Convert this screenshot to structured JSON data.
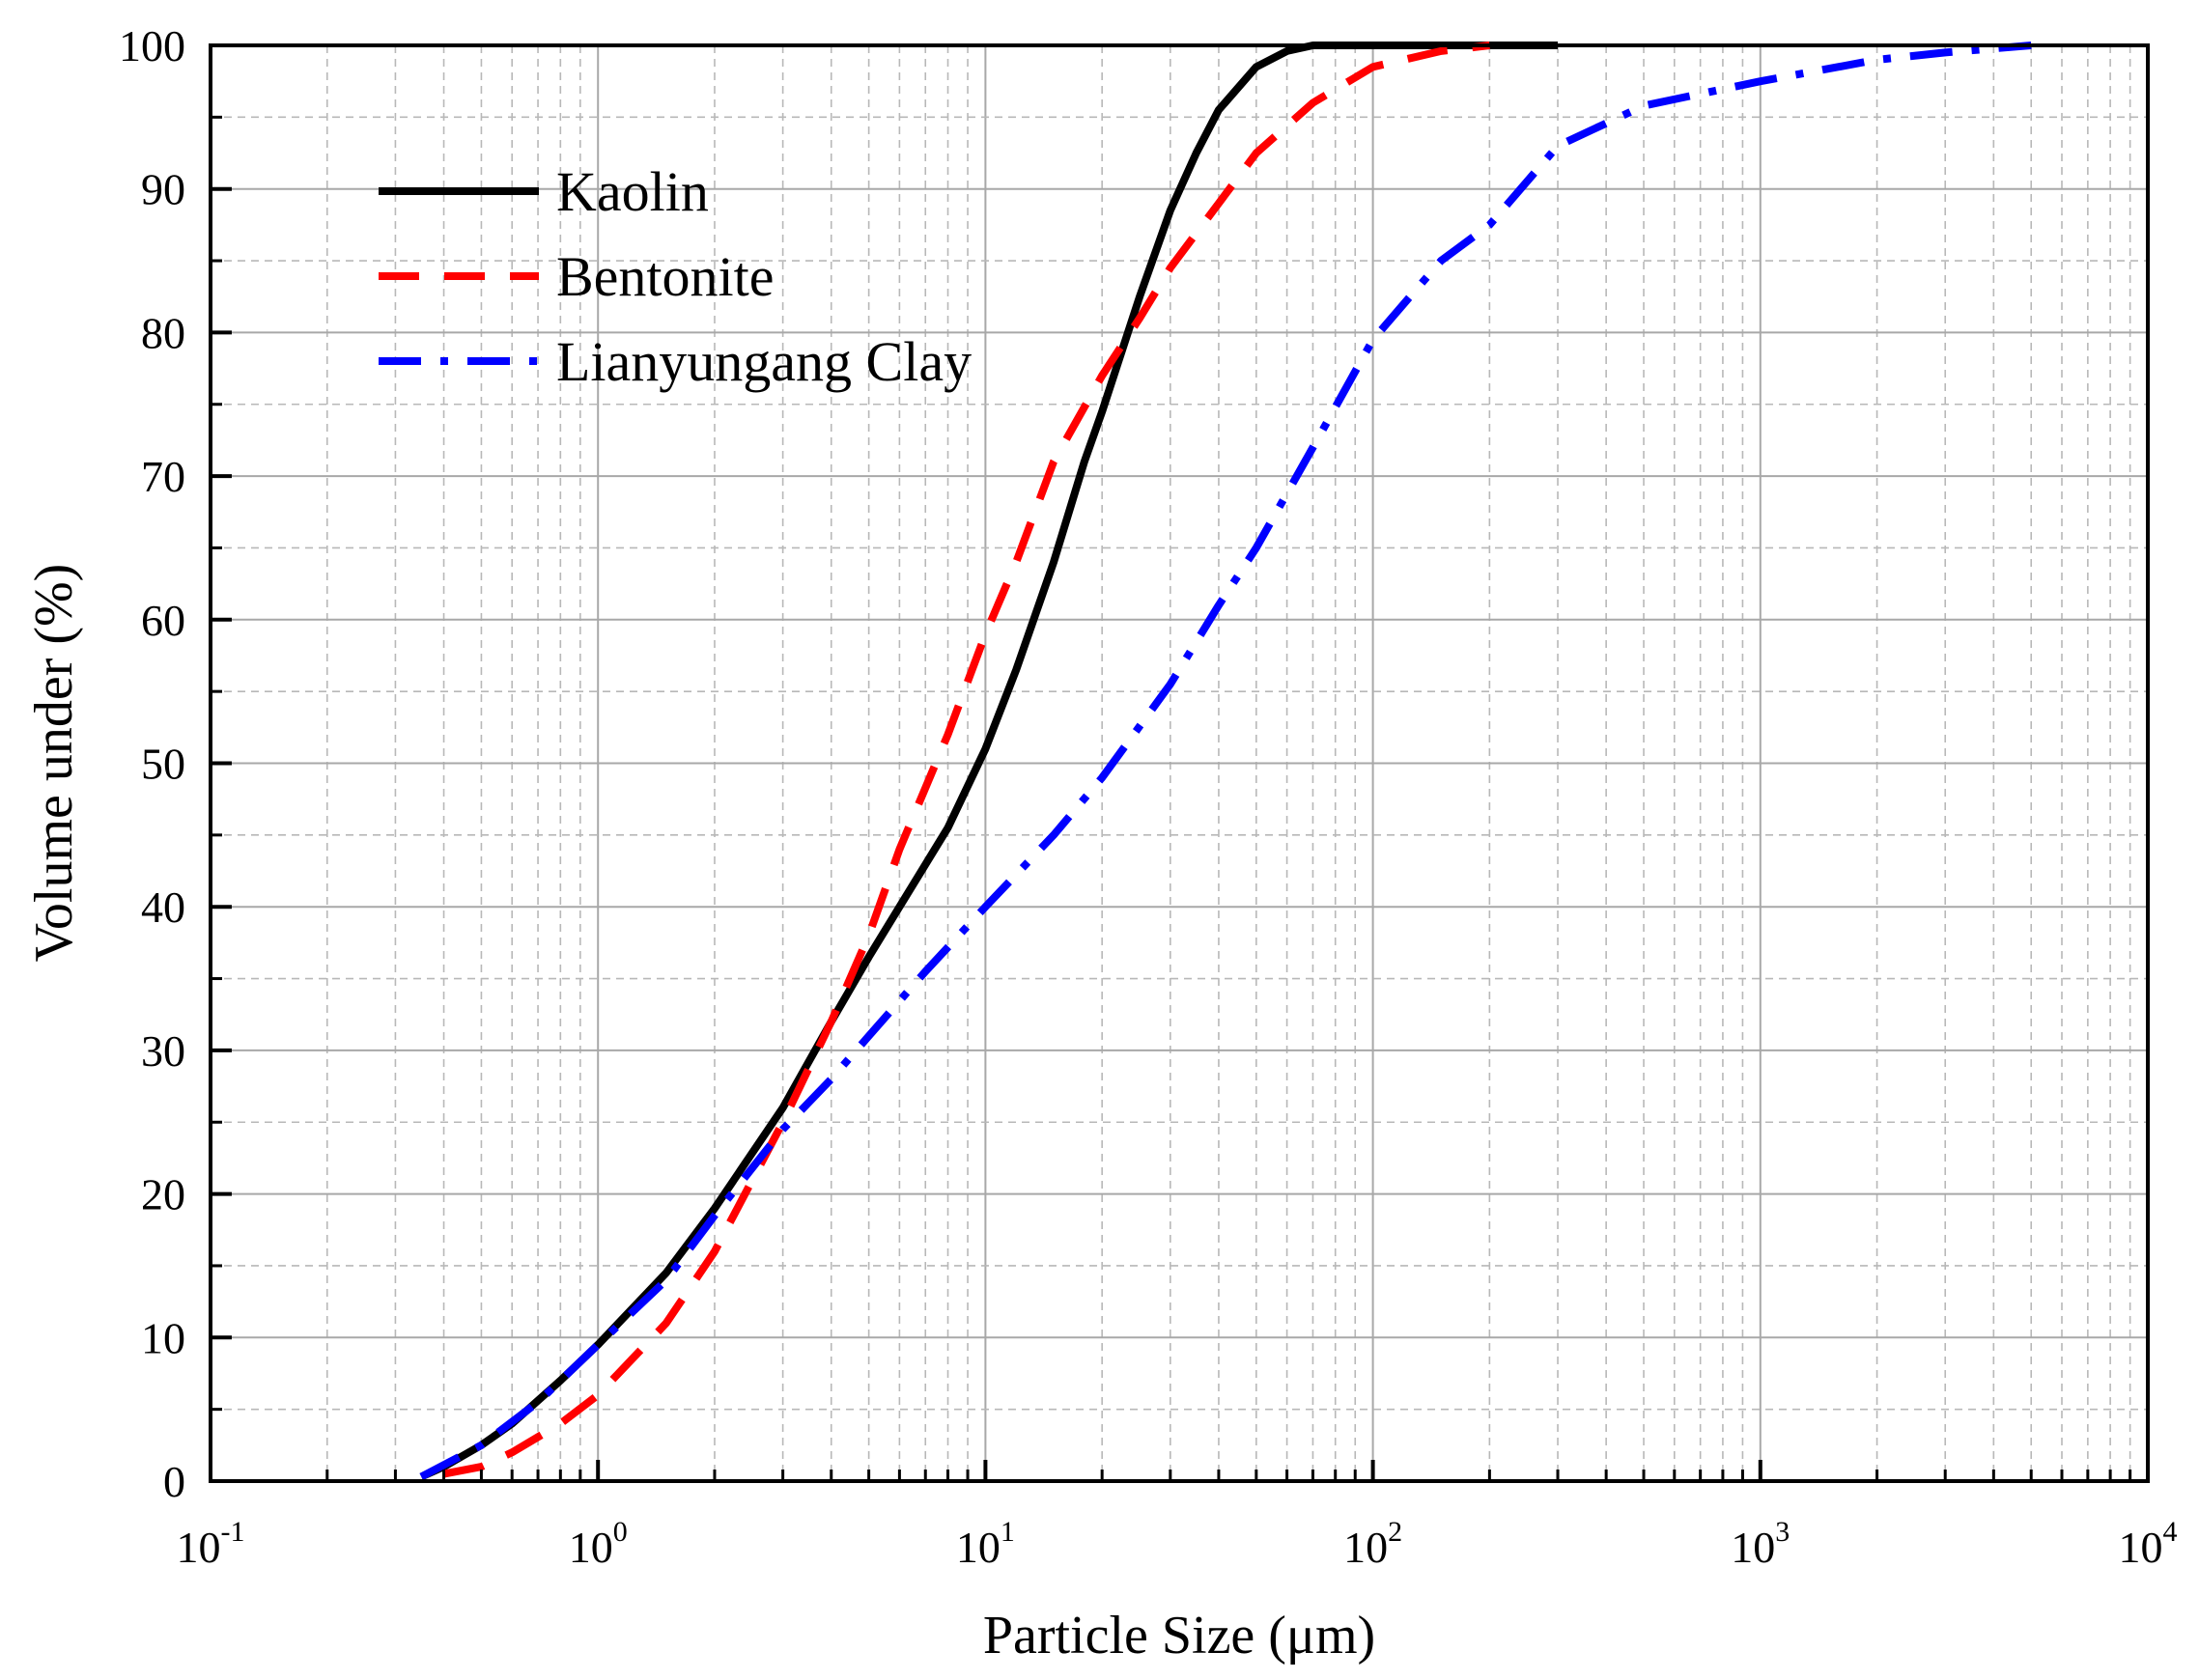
{
  "chart_data": {
    "type": "line",
    "title": "",
    "xlabel": "Particle Size (μm)",
    "ylabel": "Volume under (%)",
    "xscale": "log",
    "xlim": [
      0.1,
      10000
    ],
    "ylim": [
      0,
      100
    ],
    "grid": true,
    "legend_position": "top-left",
    "x_ticks": [
      {
        "base": "10",
        "exp": "-1",
        "value": 0.1
      },
      {
        "base": "10",
        "exp": "0",
        "value": 1
      },
      {
        "base": "10",
        "exp": "1",
        "value": 10
      },
      {
        "base": "10",
        "exp": "2",
        "value": 100
      },
      {
        "base": "10",
        "exp": "3",
        "value": 1000
      },
      {
        "base": "10",
        "exp": "4",
        "value": 10000
      }
    ],
    "y_ticks": [
      "0",
      "10",
      "20",
      "30",
      "40",
      "50",
      "60",
      "70",
      "80",
      "90",
      "100"
    ],
    "series": [
      {
        "name": "Kaolin",
        "color": "#000000",
        "style": "solid",
        "points": [
          [
            0.35,
            0.3
          ],
          [
            0.4,
            1
          ],
          [
            0.5,
            2.5
          ],
          [
            0.6,
            4
          ],
          [
            0.8,
            7
          ],
          [
            1,
            9.5
          ],
          [
            1.5,
            14.5
          ],
          [
            2,
            19
          ],
          [
            3,
            26
          ],
          [
            4,
            32
          ],
          [
            5,
            36.5
          ],
          [
            6,
            40
          ],
          [
            8,
            45.5
          ],
          [
            10,
            51
          ],
          [
            12,
            56.5
          ],
          [
            15,
            64
          ],
          [
            18,
            71
          ],
          [
            20,
            74.5
          ],
          [
            25,
            82.5
          ],
          [
            30,
            88.5
          ],
          [
            35,
            92.5
          ],
          [
            40,
            95.5
          ],
          [
            50,
            98.5
          ],
          [
            60,
            99.6
          ],
          [
            70,
            100
          ],
          [
            100,
            100
          ],
          [
            200,
            100
          ],
          [
            300,
            100
          ]
        ]
      },
      {
        "name": "Bentonite",
        "color": "#ff0000",
        "style": "dash",
        "points": [
          [
            0.4,
            0.5
          ],
          [
            0.5,
            1
          ],
          [
            0.6,
            2
          ],
          [
            0.8,
            4
          ],
          [
            1,
            6
          ],
          [
            1.5,
            11
          ],
          [
            2,
            16
          ],
          [
            3,
            25
          ],
          [
            4,
            32
          ],
          [
            5,
            38
          ],
          [
            6,
            44
          ],
          [
            8,
            52
          ],
          [
            10,
            59
          ],
          [
            12,
            64
          ],
          [
            15,
            71
          ],
          [
            20,
            77
          ],
          [
            25,
            81
          ],
          [
            30,
            84.5
          ],
          [
            40,
            89
          ],
          [
            50,
            92.5
          ],
          [
            70,
            96
          ],
          [
            100,
            98.5
          ],
          [
            150,
            99.6
          ],
          [
            200,
            100
          ]
        ]
      },
      {
        "name": "Lianyungang Clay",
        "color": "#0000ff",
        "style": "dashdot",
        "points": [
          [
            0.35,
            0.3
          ],
          [
            0.5,
            2.5
          ],
          [
            0.7,
            5.5
          ],
          [
            1,
            9.5
          ],
          [
            1.5,
            14
          ],
          [
            2,
            18.5
          ],
          [
            3,
            24.5
          ],
          [
            4,
            28
          ],
          [
            5,
            31
          ],
          [
            7,
            35.5
          ],
          [
            10,
            40
          ],
          [
            15,
            45
          ],
          [
            20,
            49
          ],
          [
            30,
            55.5
          ],
          [
            40,
            61
          ],
          [
            50,
            65
          ],
          [
            70,
            72
          ],
          [
            100,
            79.5
          ],
          [
            150,
            85
          ],
          [
            200,
            87.5
          ],
          [
            300,
            93
          ],
          [
            500,
            95.8
          ],
          [
            1000,
            97.5
          ],
          [
            2000,
            99
          ],
          [
            3000,
            99.5
          ],
          [
            5000,
            100
          ]
        ]
      }
    ]
  }
}
